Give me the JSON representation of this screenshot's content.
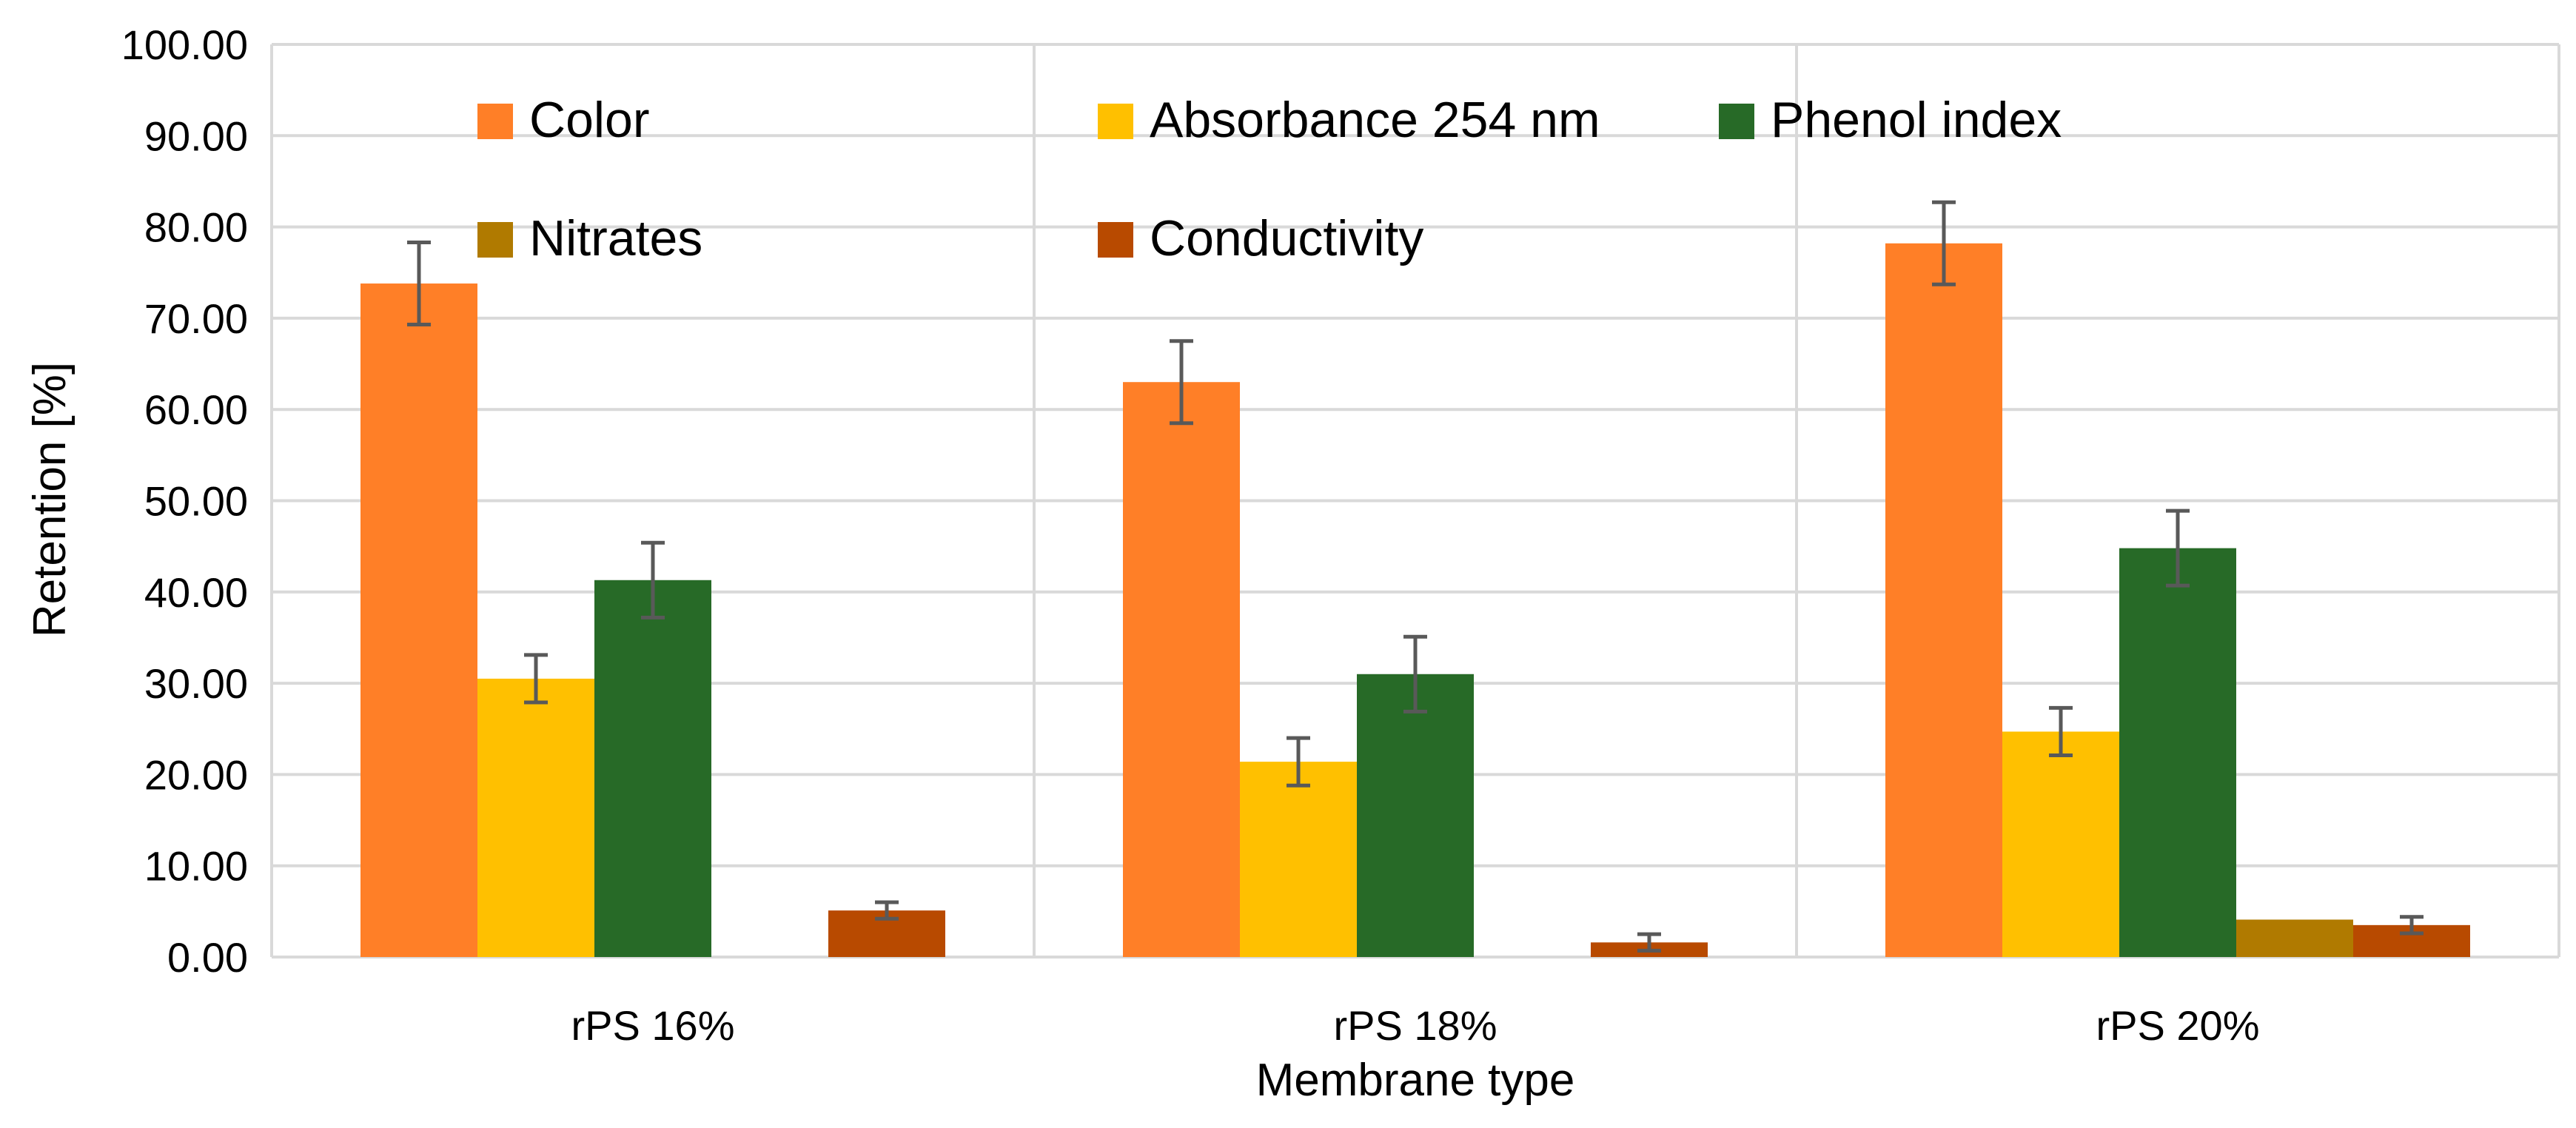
{
  "chart_data": {
    "type": "bar",
    "title": "",
    "xlabel": "Membrane type",
    "ylabel": "Retention [%]",
    "ylim": [
      0,
      100
    ],
    "yticks": [
      "0.00",
      "10.00",
      "20.00",
      "30.00",
      "40.00",
      "50.00",
      "60.00",
      "70.00",
      "80.00",
      "90.00",
      "100.00"
    ],
    "grid": true,
    "legend_position": "top-inside",
    "categories": [
      "rPS 16%",
      "rPS 18%",
      "rPS 20%"
    ],
    "series": [
      {
        "name": "Color",
        "color": "#FF7F27",
        "values": [
          73.8,
          63.0,
          78.2
        ],
        "errors": [
          4.5,
          4.5,
          4.5
        ]
      },
      {
        "name": "Absorbance 254 nm",
        "color": "#FFC000",
        "values": [
          30.5,
          21.4,
          24.7
        ],
        "errors": [
          2.6,
          2.6,
          2.6
        ]
      },
      {
        "name": "Phenol index",
        "color": "#276A27",
        "values": [
          41.3,
          31.0,
          44.8
        ],
        "errors": [
          4.1,
          4.1,
          4.1
        ]
      },
      {
        "name": "Nitrates",
        "color": "#B07A00",
        "values": [
          0,
          0,
          4.1
        ],
        "errors": [
          null,
          null,
          null
        ]
      },
      {
        "name": "Conductivity",
        "color": "#B84A00",
        "values": [
          5.1,
          1.6,
          3.5
        ],
        "errors": [
          0.9,
          0.9,
          0.9
        ]
      }
    ],
    "error_bar_color": "#595959"
  }
}
